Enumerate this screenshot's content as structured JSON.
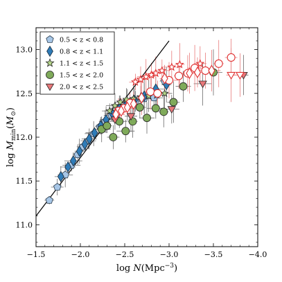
{
  "chart_data": {
    "type": "scatter",
    "xlabel": "log N(Mpc⁻³)",
    "ylabel": "log M_min(M⊙)",
    "xlim": [
      -1.5,
      -4.0
    ],
    "ylim": [
      10.75,
      13.25
    ],
    "x_ticks": [
      -1.5,
      -2.0,
      -2.5,
      -3.0,
      -3.5,
      -4.0
    ],
    "x_tick_labels": [
      "−1.5",
      "−2.0",
      "−2.5",
      "−3.0",
      "−3.5",
      "−4.0"
    ],
    "y_ticks": [
      11.0,
      11.5,
      12.0,
      12.5,
      13.0
    ],
    "y_tick_labels": [
      "11.0",
      "11.5",
      "12.0",
      "12.5",
      "13.0"
    ],
    "grid": false,
    "legend_position": "top-left",
    "series": [
      {
        "name": "0.5 < z < 0.8",
        "marker": "pentagon",
        "color": "#a7c6e6",
        "edge": "#2a3b4c",
        "points": [
          {
            "x": -1.65,
            "y": 11.28
          },
          {
            "x": -1.74,
            "y": 11.43
          },
          {
            "x": -1.83,
            "y": 11.57
          },
          {
            "x": -1.9,
            "y": 11.68
          },
          {
            "x": -1.97,
            "y": 11.8
          },
          {
            "x": -2.03,
            "y": 11.89
          },
          {
            "x": -2.09,
            "y": 11.96
          },
          {
            "x": -2.15,
            "y": 12.04
          },
          {
            "x": -2.22,
            "y": 12.12
          },
          {
            "x": -2.28,
            "y": 12.18
          },
          {
            "x": -2.35,
            "y": 12.25
          },
          {
            "x": -2.44,
            "y": 12.31
          },
          {
            "x": -2.53,
            "y": 12.37
          },
          {
            "x": -2.62,
            "y": 12.41
          },
          {
            "x": -2.72,
            "y": 12.44
          },
          {
            "x": -2.83,
            "y": 12.45
          },
          {
            "x": -2.95,
            "y": 12.64
          }
        ]
      },
      {
        "name": "0.8 < z < 1.1",
        "marker": "diamond",
        "color": "#2f7cb8",
        "edge": "#1a2a3a",
        "points": [
          {
            "x": -1.78,
            "y": 11.55
          },
          {
            "x": -1.86,
            "y": 11.66
          },
          {
            "x": -1.92,
            "y": 11.73
          },
          {
            "x": -1.99,
            "y": 11.84
          },
          {
            "x": -2.05,
            "y": 11.92
          },
          {
            "x": -2.1,
            "y": 11.98
          },
          {
            "x": -2.16,
            "y": 12.05
          },
          {
            "x": -2.23,
            "y": 12.13
          },
          {
            "x": -2.29,
            "y": 12.2
          },
          {
            "x": -2.36,
            "y": 12.27
          },
          {
            "x": -2.44,
            "y": 12.33
          },
          {
            "x": -2.52,
            "y": 12.39
          },
          {
            "x": -2.61,
            "y": 12.42
          },
          {
            "x": -2.72,
            "y": 12.47
          },
          {
            "x": -2.85,
            "y": 12.55
          },
          {
            "x": -2.97,
            "y": 12.6
          }
        ]
      },
      {
        "name": "1.1 < z < 1.5",
        "marker": "star",
        "color": "#b5d68a",
        "edge": "#222222",
        "points": [
          {
            "x": -2.33,
            "y": 12.3
          },
          {
            "x": -2.39,
            "y": 12.36
          },
          {
            "x": -2.45,
            "y": 12.4
          },
          {
            "x": -2.52,
            "y": 12.43
          },
          {
            "x": -2.6,
            "y": 12.44
          },
          {
            "x": -2.68,
            "y": 12.46
          },
          {
            "x": -2.77,
            "y": 12.47
          },
          {
            "x": -2.86,
            "y": 12.48
          },
          {
            "x": -2.95,
            "y": 12.5
          }
        ]
      },
      {
        "name": "1.5 < z < 2.0",
        "marker": "circle",
        "color": "#7faa5a",
        "edge": "#222222",
        "points": [
          {
            "x": -2.24,
            "y": 12.09
          },
          {
            "x": -2.3,
            "y": 12.13
          },
          {
            "x": -2.37,
            "y": 12.0
          },
          {
            "x": -2.44,
            "y": 12.18
          },
          {
            "x": -2.51,
            "y": 12.07
          },
          {
            "x": -2.59,
            "y": 12.18
          },
          {
            "x": -2.67,
            "y": 12.34
          },
          {
            "x": -2.75,
            "y": 12.22
          },
          {
            "x": -2.85,
            "y": 12.33
          },
          {
            "x": -2.94,
            "y": 12.29
          },
          {
            "x": -3.05,
            "y": 12.4
          },
          {
            "x": -3.16,
            "y": 12.58
          },
          {
            "x": -3.5,
            "y": 12.74
          }
        ]
      },
      {
        "name": "2.0 < z < 2.5",
        "marker": "triangle-down",
        "color": "#e8787a",
        "edge": "#222222",
        "points": [
          {
            "x": -2.39,
            "y": 12.2
          },
          {
            "x": -2.57,
            "y": 12.24
          },
          {
            "x": -3.03,
            "y": 12.32
          },
          {
            "x": -3.38,
            "y": 12.61
          },
          {
            "x": -3.84,
            "y": 12.71
          }
        ]
      },
      {
        "name": "",
        "marker": "star-open",
        "color": "#ffffff",
        "edge": "#e03030",
        "points": [
          {
            "x": -2.62,
            "y": 12.63
          },
          {
            "x": -2.68,
            "y": 12.66
          },
          {
            "x": -2.74,
            "y": 12.69
          },
          {
            "x": -2.8,
            "y": 12.71
          },
          {
            "x": -2.85,
            "y": 12.73
          },
          {
            "x": -2.92,
            "y": 12.76
          },
          {
            "x": -3.03,
            "y": 12.8
          },
          {
            "x": -3.12,
            "y": 12.83
          },
          {
            "x": -3.35,
            "y": 12.84
          }
        ]
      },
      {
        "name": "",
        "marker": "circle-open",
        "color": "#ffffff",
        "edge": "#e03030",
        "points": [
          {
            "x": -2.43,
            "y": 12.3
          },
          {
            "x": -2.49,
            "y": 12.33
          },
          {
            "x": -2.56,
            "y": 12.39
          },
          {
            "x": -2.79,
            "y": 12.52
          },
          {
            "x": -2.87,
            "y": 12.5
          },
          {
            "x": -3.0,
            "y": 12.65
          },
          {
            "x": -3.11,
            "y": 12.7
          },
          {
            "x": -3.21,
            "y": 12.73
          },
          {
            "x": -3.29,
            "y": 12.79
          },
          {
            "x": -3.41,
            "y": 12.76
          },
          {
            "x": -3.56,
            "y": 12.84
          },
          {
            "x": -3.7,
            "y": 12.91
          }
        ]
      },
      {
        "name": "",
        "marker": "diamond-open",
        "color": "#ffffff",
        "edge": "#e03030",
        "points": [
          {
            "x": -2.4,
            "y": 12.26
          },
          {
            "x": -2.46,
            "y": 12.3
          },
          {
            "x": -2.53,
            "y": 12.34
          },
          {
            "x": -2.6,
            "y": 12.38
          },
          {
            "x": -2.69,
            "y": 12.45
          },
          {
            "x": -2.95,
            "y": 12.67
          },
          {
            "x": -3.23,
            "y": 12.73
          },
          {
            "x": -3.32,
            "y": 12.74
          },
          {
            "x": -3.48,
            "y": 12.76
          }
        ]
      },
      {
        "name": "",
        "marker": "triangle-down-open",
        "color": "#ffffff",
        "edge": "#e03030",
        "points": [
          {
            "x": -3.7,
            "y": 12.71
          },
          {
            "x": -3.8,
            "y": 12.71
          }
        ]
      }
    ],
    "line": {
      "x": [
        -1.5,
        -3.0
      ],
      "y": [
        11.1,
        13.1
      ],
      "color": "#000000"
    }
  }
}
